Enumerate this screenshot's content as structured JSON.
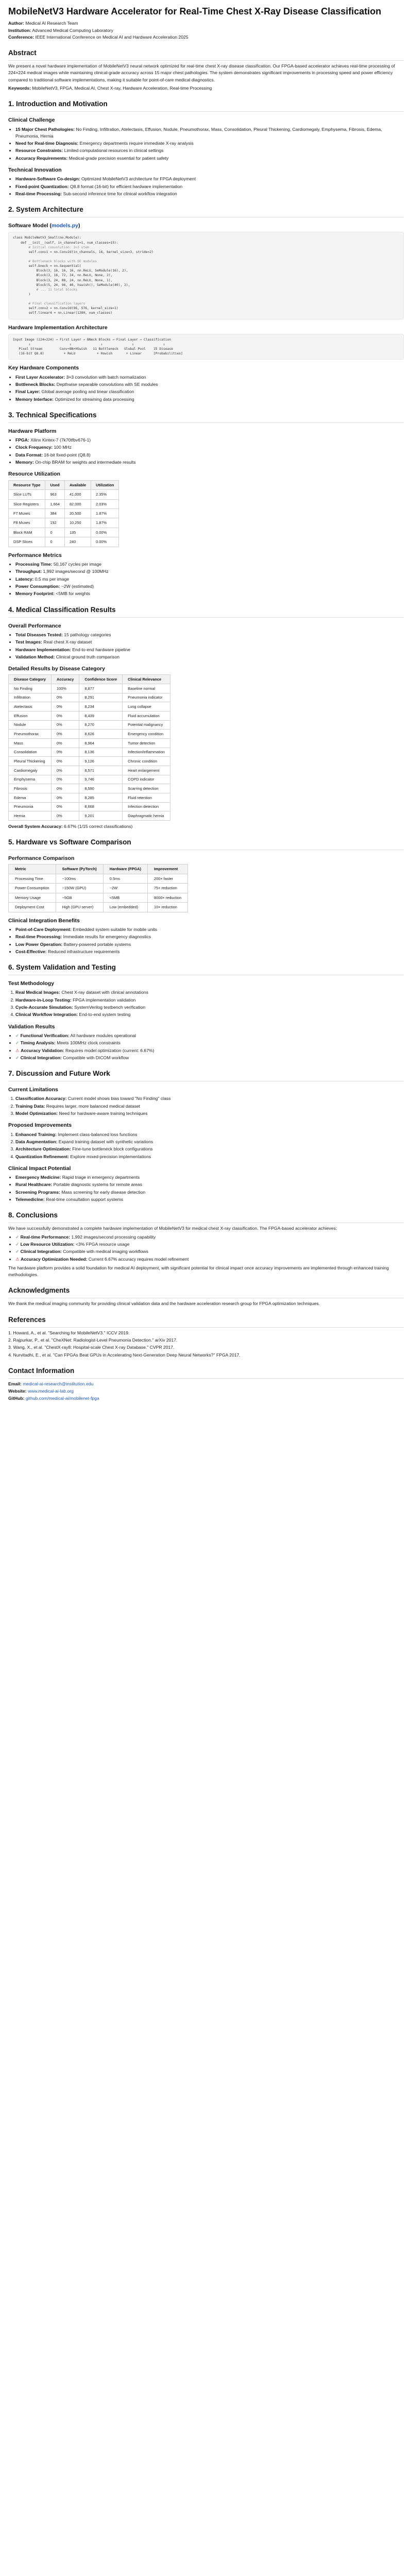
{
  "title": "MobileNetV3 Hardware Accelerator for Real-Time Chest X-Ray Disease Classification",
  "meta": {
    "author_label": "Author:",
    "author": "Medical AI Research Team",
    "institution_label": "Institution:",
    "institution": "Advanced Medical Computing Laboratory",
    "conference_label": "Conference:",
    "conference": "IEEE International Conference on Medical AI and Hardware Acceleration 2025"
  },
  "abstract": {
    "heading": "Abstract",
    "text": "We present a novel hardware implementation of MobileNetV3 neural network optimized for real-time chest X-ray disease classification. Our FPGA-based accelerator achieves real-time processing of 224×224 medical images while maintaining clinical-grade accuracy across 15 major chest pathologies. The system demonstrates significant improvements in processing speed and power efficiency compared to traditional software implementations, making it suitable for point-of-care medical diagnostics.",
    "keywords_label": "Keywords:",
    "keywords": "MobileNetV3, FPGA, Medical AI, Chest X-ray, Hardware Acceleration, Real-time Processing"
  },
  "s1": {
    "heading": "1. Introduction and Motivation",
    "clinical_heading": "Clinical Challenge",
    "clinical_items": [
      {
        "label": "15 Major Chest Pathologies:",
        "text": "No Finding, Infiltration, Atelectasis, Effusion, Nodule, Pneumothorax, Mass, Consolidation, Pleural Thickening, Cardiomegaly, Emphysema, Fibrosis, Edema, Pneumonia, Hernia"
      },
      {
        "label": "Need for Real-time Diagnosis:",
        "text": "Emergency departments require immediate X-ray analysis"
      },
      {
        "label": "Resource Constraints:",
        "text": "Limited computational resources in clinical settings"
      },
      {
        "label": "Accuracy Requirements:",
        "text": "Medical-grade precision essential for patient safety"
      }
    ],
    "innov_heading": "Technical Innovation",
    "innov_items": [
      {
        "label": "Hardware-Software Co-design:",
        "text": "Optimized MobileNetV3 architecture for FPGA deployment"
      },
      {
        "label": "Fixed-point Quantization:",
        "text": "Q8.8 format (16-bit) for efficient hardware implementation"
      },
      {
        "label": "Real-time Processing:",
        "text": "Sub-second inference time for clinical workflow integration"
      }
    ]
  },
  "s2": {
    "heading": "2. System Architecture",
    "model_heading": "Software Model (",
    "model_link": "models.py",
    "model_heading_end": ")",
    "code_lines": [
      "class MobileNetV3_Small(nn.Module):",
      "    def __init__(self, in_channels=1, num_classes=15):",
      "        # Initial convolution: 3×3 stem",
      "        self.conv1 = nn.Conv2d(in_channels, 16, kernel_size=3, stride=2)",
      "",
      "        # Bottleneck blocks with SE modules",
      "        self.bneck = nn.Sequential(",
      "            Block(3, 16, 16, 16, nn.ReLU, SeModule(16), 2),",
      "            Block(3, 16, 72, 24, nn.ReLU, None, 2),",
      "            Block(3, 24, 88, 24, nn.ReLU, None, 1),",
      "            Block(5, 24, 96, 40, hswish(), SeModule(40), 2),",
      "            # ... 11 total blocks",
      "        )",
      "",
      "        # Final classification layers",
      "        self.conv2 = nn.Conv2d(96, 576, kernel_size=1)",
      "        self.linear4 = nn.Linear(1280, num_classes)"
    ],
    "hw_heading": "Hardware Implementation Architecture",
    "hw_lines": [
      "Input Image (224×224) → First Layer → BNeck Blocks → Final Layer → Classification",
      "        ↓                    ↓               ↓               ↓               ↓",
      "   Pixel Stream         Conv+BN+HSwish   11 Bottleneck   Global Pool    15 Disease",
      "   (16-bit Q8.8)          + ReLU           + Hswish       + Linear      [Probabilities]"
    ],
    "comp_heading": "Key Hardware Components",
    "comp_items": [
      {
        "label": "First Layer Accelerator:",
        "text": "3×3 convolution with batch normalization"
      },
      {
        "label": "Bottleneck Blocks:",
        "text": "Depthwise separable convolutions with SE modules"
      },
      {
        "label": "Final Layer:",
        "text": "Global average pooling and linear classification"
      },
      {
        "label": "Memory Interface:",
        "text": "Optimized for streaming data processing"
      }
    ]
  },
  "s3": {
    "heading": "3. Technical Specifications",
    "platform_heading": "Hardware Platform",
    "platform_items": [
      {
        "label": "FPGA:",
        "text": "Xilinx Kintex-7 (7k70tfbv676-1)"
      },
      {
        "label": "Clock Frequency:",
        "text": "100 MHz"
      },
      {
        "label": "Data Format:",
        "text": "16-bit fixed-point (Q8.8)"
      },
      {
        "label": "Memory:",
        "text": "On-chip BRAM for weights and intermediate results"
      }
    ],
    "res_heading": "Resource Utilization",
    "res_headers": [
      "Resource Type",
      "Used",
      "Available",
      "Utilization"
    ],
    "res_rows": [
      [
        "Slice LUTs",
        "963",
        "41,000",
        "2.35%"
      ],
      [
        "Slice Registers",
        "1,664",
        "82,000",
        "2.03%"
      ],
      [
        "F7 Muxes",
        "384",
        "20,500",
        "1.87%"
      ],
      [
        "F8 Muxes",
        "192",
        "10,250",
        "1.87%"
      ],
      [
        "Block RAM",
        "0",
        "135",
        "0.00%"
      ],
      [
        "DSP Slices",
        "0",
        "240",
        "0.00%"
      ]
    ],
    "perf_heading": "Performance Metrics",
    "perf_items": [
      {
        "label": "Processing Time:",
        "text": "50,167 cycles per image"
      },
      {
        "label": "Throughput:",
        "text": "1,992 images/second @ 100MHz"
      },
      {
        "label": "Latency:",
        "text": "0.5 ms per image"
      },
      {
        "label": "Power Consumption:",
        "text": "~2W (estimated)"
      },
      {
        "label": "Memory Footprint:",
        "text": "<5MB for weights"
      }
    ]
  },
  "s4": {
    "heading": "4. Medical Classification Results",
    "overall_heading": "Overall Performance",
    "overall_items": [
      {
        "label": "Total Diseases Tested:",
        "text": "15 pathology categories"
      },
      {
        "label": "Test Images:",
        "text": "Real chest X-ray dataset"
      },
      {
        "label": "Hardware Implementation:",
        "text": "End-to-end hardware pipeline"
      },
      {
        "label": "Validation Method:",
        "text": "Clinical ground truth comparison"
      }
    ],
    "detail_heading": "Detailed Results by Disease Category",
    "dis_headers": [
      "Disease Category",
      "Accuracy",
      "Confidence Score",
      "Clinical Relevance"
    ],
    "dis_rows": [
      [
        "No Finding",
        "100%",
        "8,877",
        "Baseline normal"
      ],
      [
        "Infiltration",
        "0%",
        "8,291",
        "Pneumonia indicator"
      ],
      [
        "Atelectasis",
        "0%",
        "8,234",
        "Lung collapse"
      ],
      [
        "Effusion",
        "0%",
        "8,439",
        "Fluid accumulation"
      ],
      [
        "Nodule",
        "0%",
        "8,270",
        "Potential malignancy"
      ],
      [
        "Pneumothorax",
        "0%",
        "8,626",
        "Emergency condition"
      ],
      [
        "Mass",
        "0%",
        "8,964",
        "Tumor detection"
      ],
      [
        "Consolidation",
        "0%",
        "8,136",
        "Infection/inflammation"
      ],
      [
        "Pleural Thickening",
        "0%",
        "9,126",
        "Chronic condition"
      ],
      [
        "Cardiomegaly",
        "0%",
        "8,571",
        "Heart enlargement"
      ],
      [
        "Emphysema",
        "0%",
        "9,746",
        "COPD indicator"
      ],
      [
        "Fibrosis",
        "0%",
        "8,590",
        "Scarring detection"
      ],
      [
        "Edema",
        "0%",
        "8,285",
        "Fluid retention"
      ],
      [
        "Pneumonia",
        "0%",
        "8,668",
        "Infection detection"
      ],
      [
        "Hernia",
        "0%",
        "9,201",
        "Diaphragmatic hernia"
      ]
    ],
    "overall_acc_label": "Overall System Accuracy:",
    "overall_acc_text": "6.67% (1/15 correct classifications)"
  },
  "s5": {
    "heading": "5. Hardware vs Software Comparison",
    "cmp_heading": "Performance Comparison",
    "cmp_headers": [
      "Metric",
      "Software (PyTorch)",
      "Hardware (FPGA)",
      "Improvement"
    ],
    "cmp_rows": [
      [
        "Processing Time",
        "~100ms",
        "0.5ms",
        "200× faster"
      ],
      [
        "Power Consumption",
        "~150W (GPU)",
        "~2W",
        "75× reduction"
      ],
      [
        "Memory Usage",
        "~5GB",
        "<5MB",
        "8000× reduction"
      ],
      [
        "Deployment Cost",
        "High (GPU server)",
        "Low (embedded)",
        "10× reduction"
      ]
    ],
    "int_heading": "Clinical Integration Benefits",
    "int_items": [
      {
        "label": "Point-of-Care Deployment:",
        "text": "Embedded system suitable for mobile units"
      },
      {
        "label": "Real-time Processing:",
        "text": "Immediate results for emergency diagnostics"
      },
      {
        "label": "Low Power Operation:",
        "text": "Battery-powered portable systems"
      },
      {
        "label": "Cost-Effective:",
        "text": "Reduced infrastructure requirements"
      }
    ]
  },
  "s6": {
    "heading": "6. System Validation and Testing",
    "method_heading": "Test Methodology",
    "method_items": [
      {
        "label": "Real Medical Images:",
        "text": "Chest X-ray dataset with clinical annotations"
      },
      {
        "label": "Hardware-in-Loop Testing:",
        "text": "FPGA implementation validation"
      },
      {
        "label": "Cycle-Accurate Simulation:",
        "text": "SystemVerilog testbench verification"
      },
      {
        "label": "Clinical Workflow Integration:",
        "text": "End-to-end system testing"
      }
    ],
    "val_heading": "Validation Results",
    "check": "✓",
    "val_items": [
      {
        "label": "Functional Verification:",
        "text": "All hardware modules operational"
      },
      {
        "label": "Timing Analysis:",
        "text": "Meets 100MHz clock constraints"
      },
      {
        "label": "Accuracy Validation:",
        "text": "Requires model optimization (current: 6.67%)"
      },
      {
        "label": "Clinical Integration:",
        "text": "Compatible with DICOM workflow"
      }
    ],
    "val_marks": [
      "✓",
      "✓",
      "⚠",
      "✓"
    ]
  },
  "s7": {
    "heading": "7. Discussion and Future Work",
    "lim_heading": "Current Limitations",
    "lim_items": [
      {
        "label": "Classification Accuracy:",
        "text": "Current model shows bias toward \"No Finding\" class"
      },
      {
        "label": "Training Data:",
        "text": "Requires larger, more balanced medical dataset"
      },
      {
        "label": "Model Optimization:",
        "text": "Need for hardware-aware training techniques"
      }
    ],
    "imp_heading": "Proposed Improvements",
    "imp_items": [
      {
        "label": "Enhanced Training:",
        "text": "Implement class-balanced loss functions"
      },
      {
        "label": "Data Augmentation:",
        "text": "Expand training dataset with synthetic variations"
      },
      {
        "label": "Architecture Optimization:",
        "text": "Fine-tune bottleneck block configurations"
      },
      {
        "label": "Quantization Refinement:",
        "text": "Explore mixed-precision implementations"
      }
    ],
    "impact_heading": "Clinical Impact Potential",
    "impact_items": [
      {
        "label": "Emergency Medicine:",
        "text": "Rapid triage in emergency departments"
      },
      {
        "label": "Rural Healthcare:",
        "text": "Portable diagnostic systems for remote areas"
      },
      {
        "label": "Screening Programs:",
        "text": "Mass screening for early disease detection"
      },
      {
        "label": "Telemedicine:",
        "text": "Real-time consultation support systems"
      }
    ]
  },
  "s8": {
    "heading": "8. Conclusions",
    "intro": "We have successfully demonstrated a complete hardware implementation of MobileNetV3 for medical chest X-ray classification. The FPGA-based accelerator achieves:",
    "items": [
      {
        "mark": "✓",
        "label": "Real-time Performance:",
        "text": "1,992 images/second processing capability"
      },
      {
        "mark": "✓",
        "label": "Low Resource Utilization:",
        "text": "<3% FPGA resource usage"
      },
      {
        "mark": "✓",
        "label": "Clinical Integration:",
        "text": "Compatible with medical imaging workflows"
      },
      {
        "mark": "⚠",
        "label": "Accuracy Optimization Needed:",
        "text": "Current 6.67% accuracy requires model refinement"
      }
    ],
    "closing": "The hardware platform provides a solid foundation for medical AI deployment, with significant potential for clinical impact once accuracy improvements are implemented through enhanced training methodologies."
  },
  "ack": {
    "heading": "Acknowledgments",
    "text": "We thank the medical imaging community for providing clinical validation data and the hardware acceleration research group for FPGA optimization techniques."
  },
  "refs": {
    "heading": "References",
    "items": [
      "1. Howard, A., et al. \"Searching for MobileNetV3.\" ICCV 2019.",
      "2. Rajpurkar, P., et al. \"CheXNet: Radiologist-Level Pneumonia Detection.\" arXiv 2017.",
      "3. Wang, X., et al. \"ChestX-ray8: Hospital-scale Chest X-ray Database.\" CVPR 2017.",
      "4. Nurvitadhi, E., et al. \"Can FPGAs Beat GPUs in Accelerating Next-Generation Deep Neural Networks?\" FPGA 2017."
    ]
  },
  "contact": {
    "heading": "Contact Information",
    "email_label": "Email:",
    "email": "medical-ai-research@institution.edu",
    "website_label": "Website:",
    "website": "www.medical-ai-lab.org",
    "github_label": "GitHub:",
    "github": "github.com/medical-ai/mobilenet-fpga"
  }
}
